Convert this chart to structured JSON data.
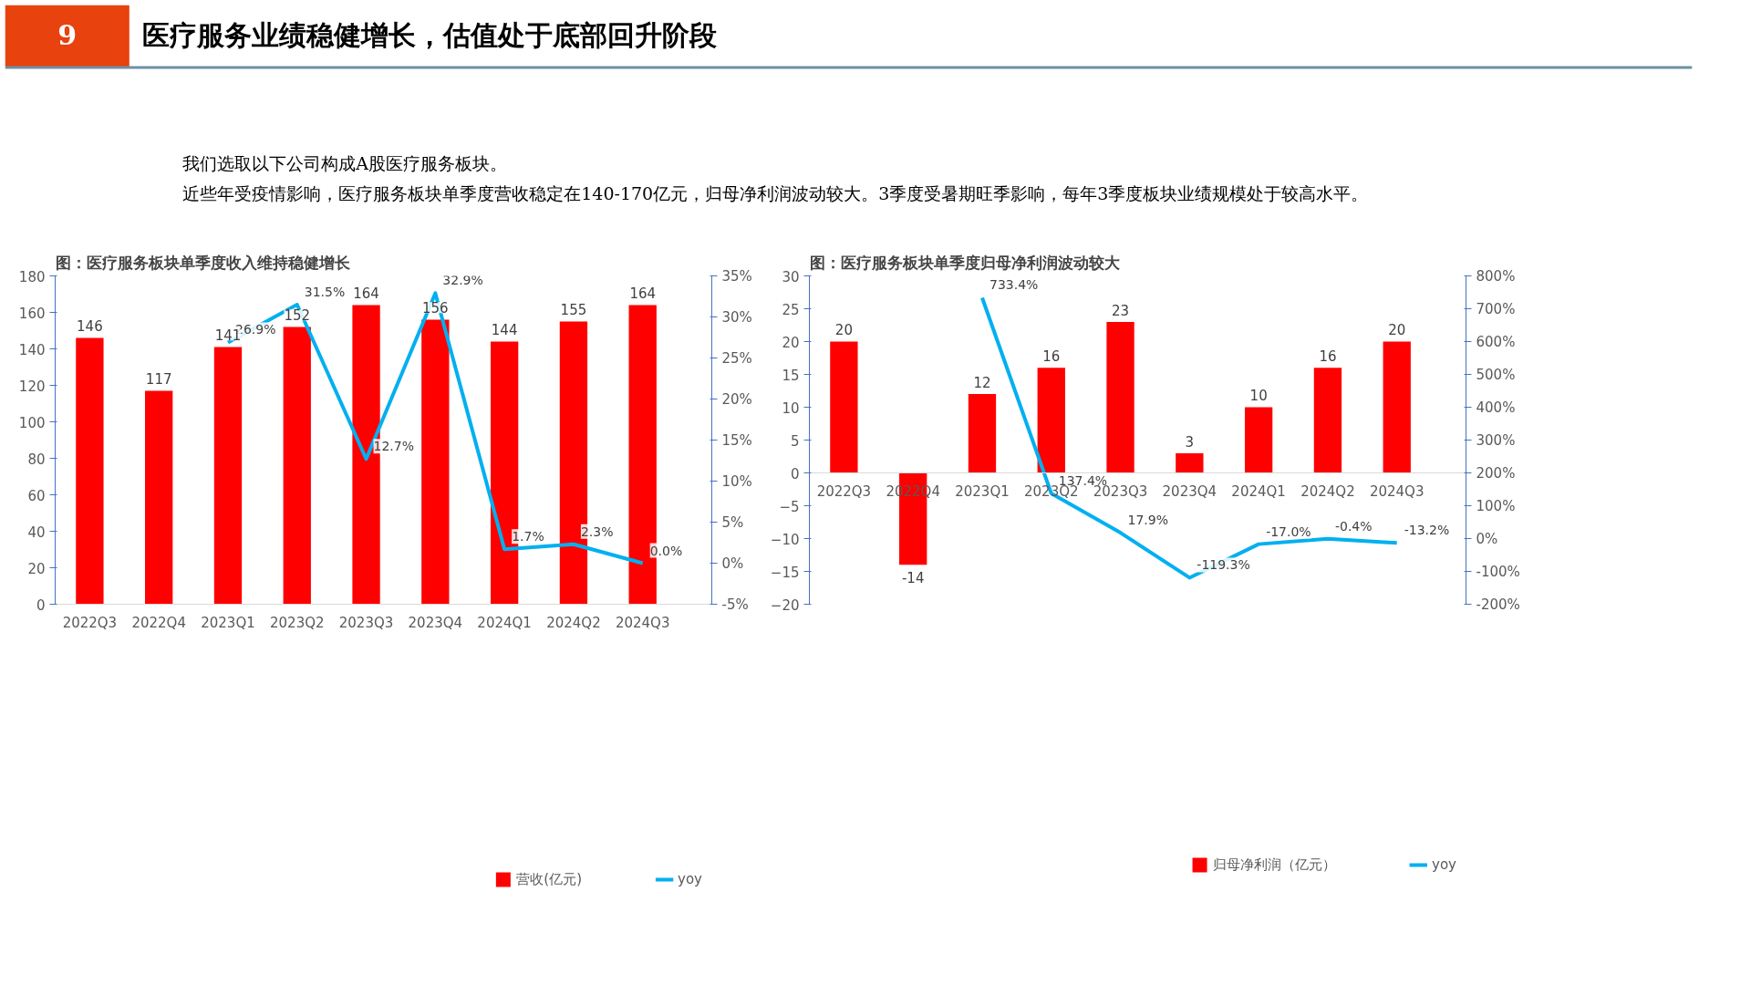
{
  "chart_data": [
    {
      "type": "other",
      "title": "医疗服务业绩稳健增长，估值处于底部回升阶段",
      "annotations": [
        "9",
        "我们选取以下公司构成A股医疗服务板块。",
        "近些年受疫情影响，医疗服务板块单季度营收稳定在140-170亿元，归母净利润波动较大。3季度受暑期旺季影响，每年3季度板块业绩规模处于较高水平。"
      ]
    },
    {
      "type": "bar",
      "title": "图：医疗服务板块单季度收入维持稳健增长",
      "categories": [
        "2022Q3",
        "2022Q4",
        "2023Q1",
        "2023Q2",
        "2023Q3",
        "2023Q4",
        "2024Q1",
        "2024Q2",
        "2024Q3"
      ],
      "series": [
        {
          "name": "营收(亿元)",
          "type": "bar",
          "color": "#ff0000",
          "values": [
            146,
            117,
            141,
            152,
            164,
            156,
            144,
            155,
            164
          ]
        },
        {
          "name": "yoy",
          "type": "line",
          "axis": "y2",
          "color": "#00b0f0",
          "values": [
            null,
            null,
            26.9,
            31.5,
            12.7,
            32.9,
            1.7,
            2.3,
            0.0
          ],
          "value_labels": [
            null,
            null,
            "26.9%",
            "31.5%",
            "12.7%",
            "32.9%",
            "1.7%",
            "2.3%",
            "0.0%"
          ]
        }
      ],
      "data_labels": true,
      "ylim": [
        0,
        180
      ],
      "yticks": [
        0,
        20,
        40,
        60,
        80,
        100,
        120,
        140,
        160,
        180
      ],
      "y2lim": [
        -5,
        35
      ],
      "y2ticks": [
        {
          "value": -5,
          "label": "-5%"
        },
        {
          "value": 0,
          "label": "0%"
        },
        {
          "value": 5,
          "label": "5%"
        },
        {
          "value": 10,
          "label": "10%"
        },
        {
          "value": 15,
          "label": "15%"
        },
        {
          "value": 20,
          "label": "20%"
        },
        {
          "value": 25,
          "label": "25%"
        },
        {
          "value": 30,
          "label": "30%"
        },
        {
          "value": 35,
          "label": "35%"
        }
      ],
      "grid": false,
      "legend": "bottom"
    },
    {
      "type": "bar",
      "title": "图：医疗服务板块单季度归母净利润波动较大",
      "categories": [
        "2022Q3",
        "2022Q4",
        "2023Q1",
        "2023Q2",
        "2023Q3",
        "2023Q4",
        "2024Q1",
        "2024Q2",
        "2024Q3"
      ],
      "series": [
        {
          "name": "归母净利润（亿元）",
          "type": "bar",
          "color": "#ff0000",
          "values": [
            20,
            -14,
            12,
            16,
            23,
            3,
            10,
            16,
            20
          ]
        },
        {
          "name": "yoy",
          "type": "line",
          "axis": "y2",
          "color": "#00b0f0",
          "values": [
            null,
            null,
            733.4,
            137.4,
            17.9,
            -119.3,
            -17.0,
            -0.4,
            -13.2
          ],
          "value_labels": [
            null,
            null,
            "733.4%",
            "137.4%",
            "17.9%",
            "-119.3%",
            "-17.0%",
            "-0.4%",
            "-13.2%"
          ]
        }
      ],
      "data_labels": true,
      "ylim": [
        -20,
        30
      ],
      "yticks": [
        -20,
        -15,
        -10,
        -5,
        0,
        5,
        10,
        15,
        20,
        25,
        30
      ],
      "y2lim": [
        -200,
        800
      ],
      "y2ticks": [
        {
          "value": -200,
          "label": "-200%"
        },
        {
          "value": -100,
          "label": "-100%"
        },
        {
          "value": 0,
          "label": "0%"
        },
        {
          "value": 100,
          "label": "100%"
        },
        {
          "value": 200,
          "label": "200%"
        },
        {
          "value": 300,
          "label": "300%"
        },
        {
          "value": 400,
          "label": "400%"
        },
        {
          "value": 500,
          "label": "500%"
        },
        {
          "value": 600,
          "label": "600%"
        },
        {
          "value": 700,
          "label": "700%"
        },
        {
          "value": 800,
          "label": "800%"
        }
      ],
      "grid": false,
      "legend": "bottom"
    }
  ]
}
